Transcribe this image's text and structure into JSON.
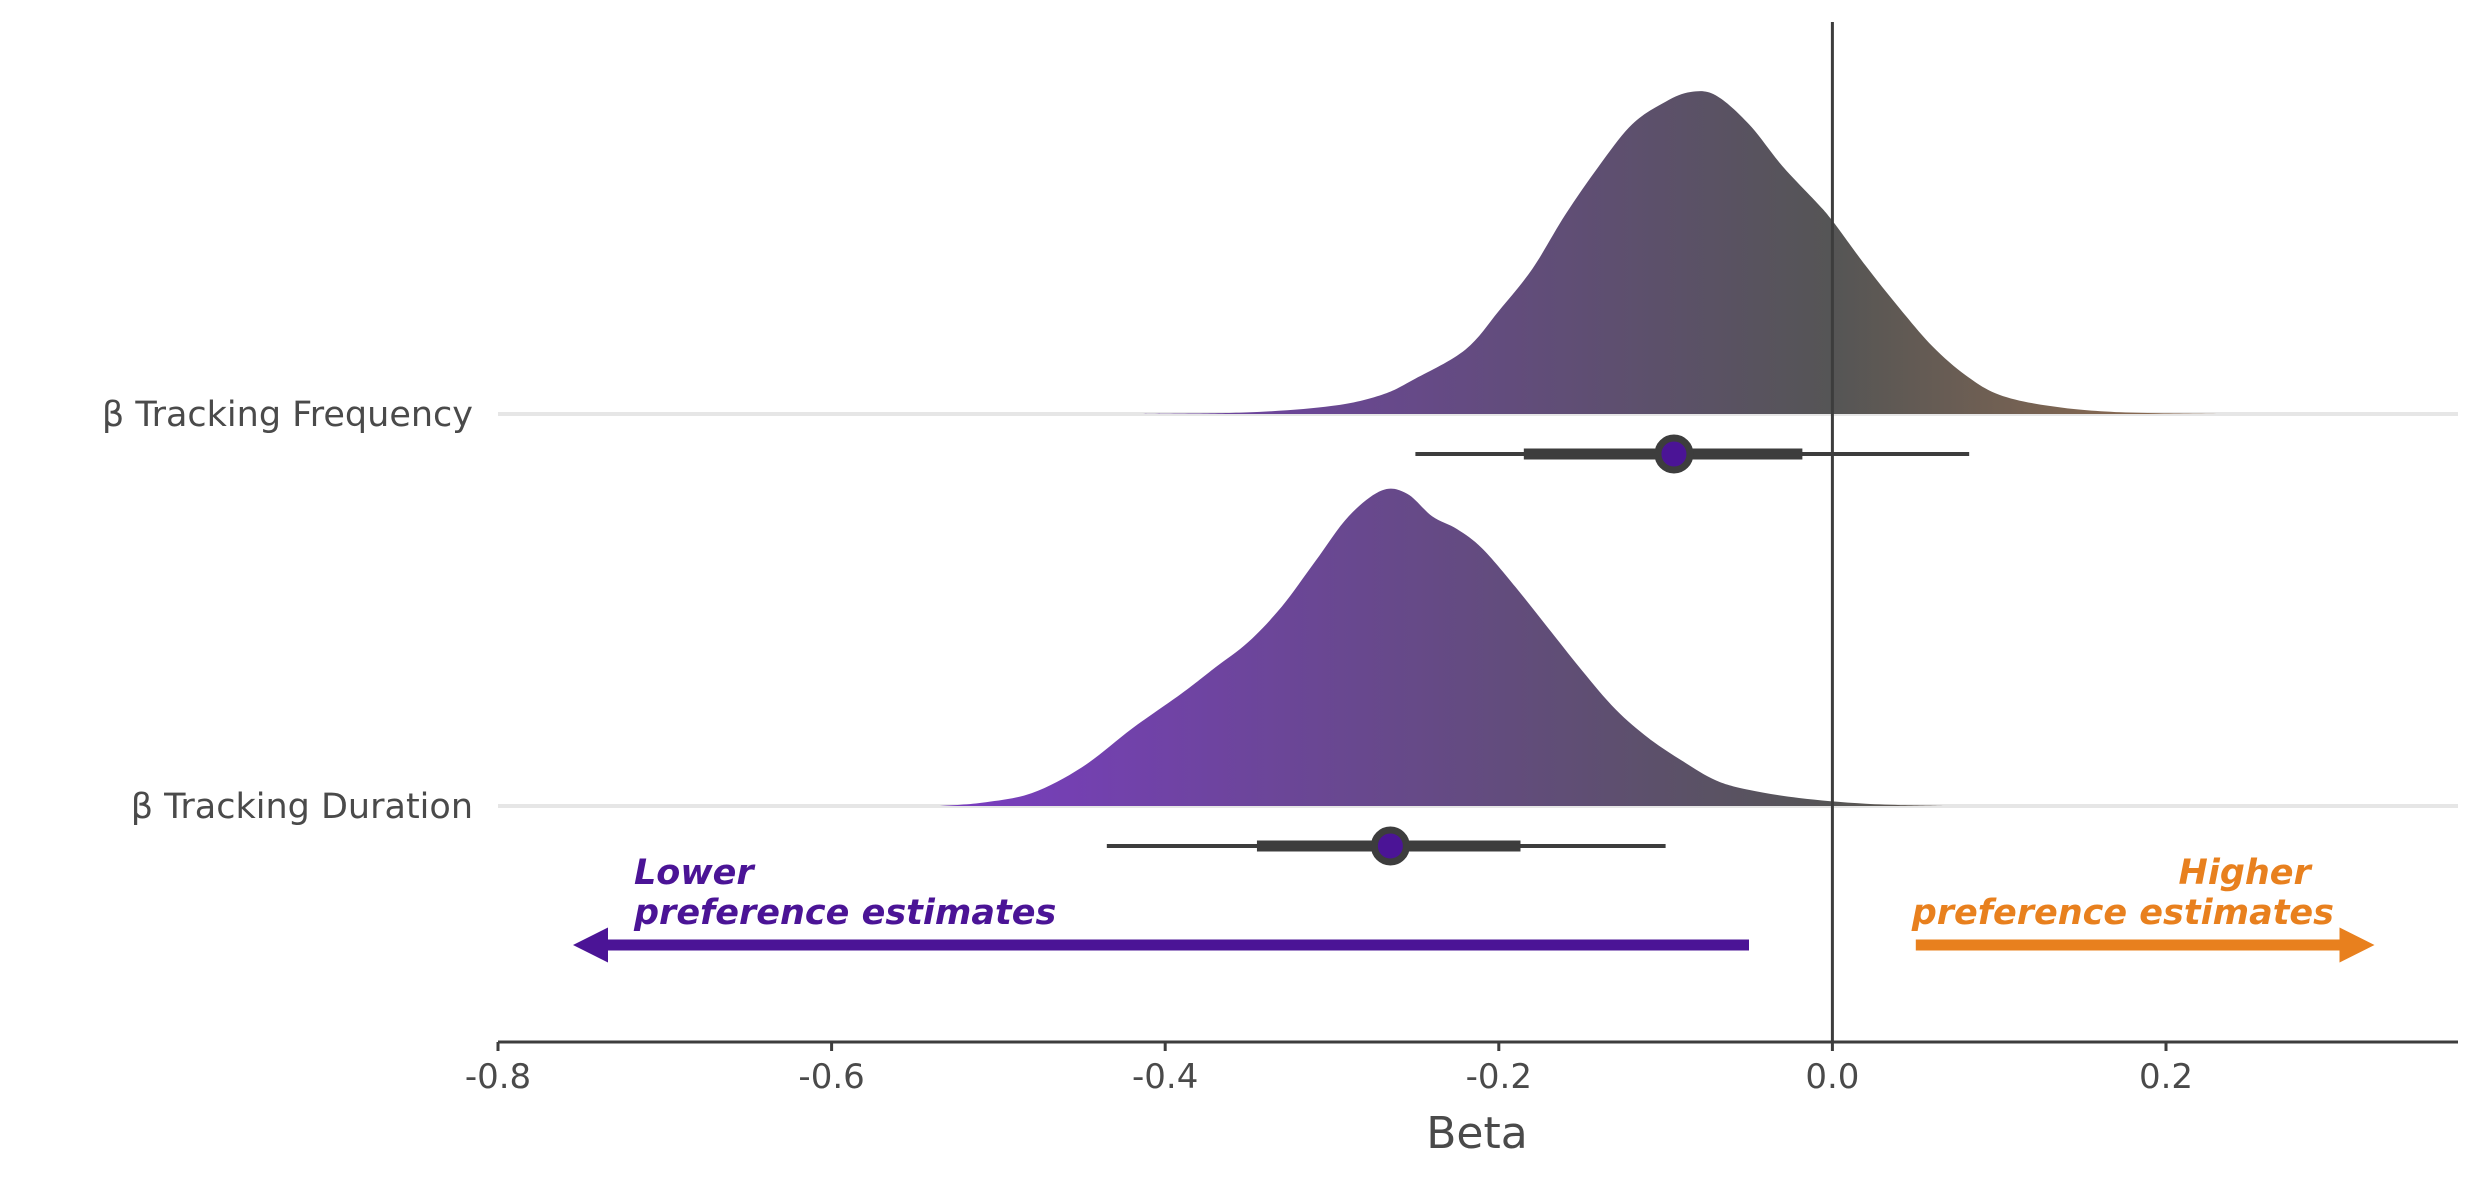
{
  "chart_data": {
    "type": "halfeye",
    "xlabel": "Beta",
    "xlim": [
      -0.8,
      0.37
    ],
    "x_ticks": [
      -0.8,
      -0.6,
      -0.4,
      -0.2,
      0.0,
      0.2
    ],
    "x_tick_labels": [
      "-0.8",
      "-0.6",
      "-0.4",
      "-0.2",
      "0.0",
      "0.2"
    ],
    "reference_line": 0.0,
    "grid": "horizontal baselines only",
    "colors": {
      "lower": "#4b1496",
      "higher": "#e8801e",
      "neutral": "#555555",
      "dot_fill": "#4b1496",
      "interval": "#3d3d3d"
    },
    "series": [
      {
        "name": "β Tracking Frequency",
        "point_estimate": -0.095,
        "interval_66": [
          -0.185,
          -0.018
        ],
        "interval_95": [
          -0.25,
          0.082
        ],
        "density_range": [
          -0.415,
          0.235
        ],
        "density": [
          [
            -0.415,
            0.0
          ],
          [
            -0.35,
            0.005
          ],
          [
            -0.3,
            0.025
          ],
          [
            -0.27,
            0.06
          ],
          [
            -0.25,
            0.11
          ],
          [
            -0.22,
            0.2
          ],
          [
            -0.2,
            0.32
          ],
          [
            -0.18,
            0.45
          ],
          [
            -0.16,
            0.62
          ],
          [
            -0.14,
            0.77
          ],
          [
            -0.12,
            0.9
          ],
          [
            -0.1,
            0.97
          ],
          [
            -0.085,
            1.0
          ],
          [
            -0.07,
            0.99
          ],
          [
            -0.05,
            0.9
          ],
          [
            -0.03,
            0.77
          ],
          [
            -0.01,
            0.66
          ],
          [
            0.0,
            0.6
          ],
          [
            0.02,
            0.46
          ],
          [
            0.04,
            0.33
          ],
          [
            0.06,
            0.21
          ],
          [
            0.08,
            0.12
          ],
          [
            0.1,
            0.06
          ],
          [
            0.13,
            0.025
          ],
          [
            0.17,
            0.006
          ],
          [
            0.235,
            0.0
          ]
        ]
      },
      {
        "name": "β Tracking Duration",
        "point_estimate": -0.265,
        "interval_66": [
          -0.345,
          -0.187
        ],
        "interval_95": [
          -0.435,
          -0.1
        ],
        "density_range": [
          -0.535,
          0.067
        ],
        "density": [
          [
            -0.535,
            0.0
          ],
          [
            -0.51,
            0.01
          ],
          [
            -0.48,
            0.04
          ],
          [
            -0.45,
            0.12
          ],
          [
            -0.42,
            0.24
          ],
          [
            -0.39,
            0.35
          ],
          [
            -0.37,
            0.43
          ],
          [
            -0.35,
            0.51
          ],
          [
            -0.33,
            0.62
          ],
          [
            -0.31,
            0.76
          ],
          [
            -0.29,
            0.9
          ],
          [
            -0.27,
            0.98
          ],
          [
            -0.255,
            0.97
          ],
          [
            -0.24,
            0.9
          ],
          [
            -0.225,
            0.86
          ],
          [
            -0.21,
            0.8
          ],
          [
            -0.19,
            0.68
          ],
          [
            -0.17,
            0.55
          ],
          [
            -0.15,
            0.42
          ],
          [
            -0.13,
            0.3
          ],
          [
            -0.11,
            0.21
          ],
          [
            -0.09,
            0.14
          ],
          [
            -0.07,
            0.08
          ],
          [
            -0.05,
            0.05
          ],
          [
            -0.02,
            0.025
          ],
          [
            0.02,
            0.007
          ],
          [
            0.067,
            0.0
          ]
        ]
      }
    ],
    "annotations": {
      "lower": {
        "lines": [
          "Lower",
          "preference estimates"
        ],
        "arrow_from": -0.05,
        "arrow_to": -0.755
      },
      "higher": {
        "lines": [
          "Higher",
          "preference estimates"
        ],
        "arrow_from": 0.05,
        "arrow_to": 0.325
      }
    }
  }
}
